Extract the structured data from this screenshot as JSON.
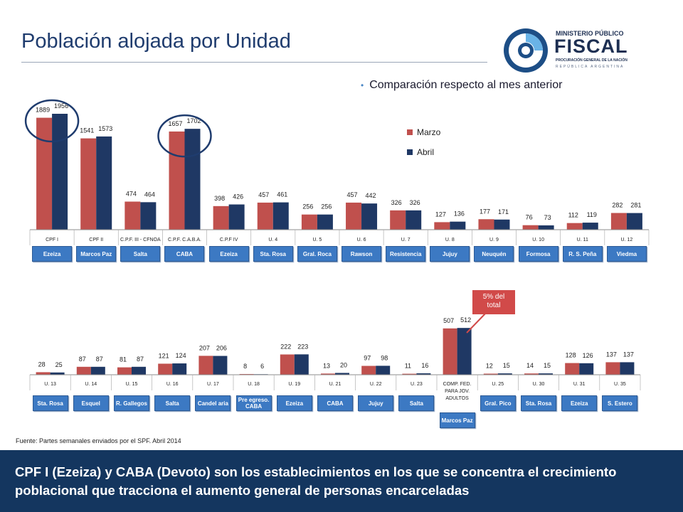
{
  "header": {
    "title": "Población alojada por Unidad",
    "subtitle": "Comparación respecto al mes anterior"
  },
  "logo": {
    "line1": "MINISTERIO PÚBLICO",
    "line2": "FISCAL",
    "line3": "PROCURACIÓN GENERAL DE LA NACIÓN",
    "line4": "REPÚBLICA ARGENTINA"
  },
  "colors": {
    "marzo": "#c0504d",
    "abril": "#1f3864",
    "chip": "#3c79c3",
    "footer": "#14365f"
  },
  "callout": {
    "line1": "5% del",
    "line2": "total"
  },
  "chart_data": [
    {
      "type": "bar",
      "legend": [
        "Marzo",
        "Abril"
      ],
      "legend_position": "right",
      "categories": [
        "CPF I",
        "CPF II",
        "C.P.F. III - CFNOA",
        "C.P.F. C.A.B.A.",
        "C.P.F IV",
        "U. 4",
        "U. 5",
        "U. 6",
        "U. 7",
        "U. 8",
        "U. 9",
        "U. 10",
        "U. 11",
        "U. 12"
      ],
      "locations": [
        "Ezeiza",
        "Marcos Paz",
        "Salta",
        "CABA",
        "Ezeiza",
        "Sta. Rosa",
        "Gral. Roca",
        "Rawson",
        "Resistencia",
        "Jujuy",
        "Neuquén",
        "Formosa",
        "R. S. Peña",
        "Viedma"
      ],
      "series": [
        {
          "name": "Marzo",
          "values": [
            1889,
            1541,
            474,
            1657,
            398,
            457,
            256,
            457,
            326,
            127,
            177,
            76,
            112,
            282
          ]
        },
        {
          "name": "Abril",
          "values": [
            1956,
            1573,
            464,
            1702,
            426,
            461,
            256,
            442,
            326,
            136,
            171,
            73,
            119,
            281
          ]
        }
      ],
      "highlighted": [
        "CPF I",
        "C.P.F. C.A.B.A."
      ],
      "ylim": [
        0,
        2100
      ]
    },
    {
      "type": "bar",
      "categories": [
        "U. 13",
        "U. 14",
        "U. 15",
        "U. 16",
        "U. 17",
        "U. 18",
        "U. 19",
        "U. 21",
        "U. 22",
        "U. 23",
        "COMP. FED. PARA JOV. ADULTOS",
        "U. 25",
        "U. 30",
        "U. 31",
        "U. 35"
      ],
      "locations": [
        "Sta. Rosa",
        "Esquel",
        "R. Gallegos",
        "Salta",
        "Candel aria",
        "Pre egreso. CABA",
        "Ezeiza",
        "CABA",
        "Jujuy",
        "Salta",
        "Marcos Paz",
        "Gral. Pico",
        "Sta. Rosa",
        "Ezeiza",
        "S. Estero"
      ],
      "series": [
        {
          "name": "Marzo",
          "values": [
            28,
            87,
            81,
            121,
            207,
            8,
            222,
            13,
            97,
            11,
            507,
            12,
            14,
            128,
            137
          ]
        },
        {
          "name": "Abril",
          "values": [
            25,
            87,
            87,
            124,
            206,
            6,
            223,
            20,
            98,
            16,
            512,
            15,
            15,
            126,
            137
          ]
        }
      ],
      "ylim": [
        0,
        560
      ]
    }
  ],
  "footer": {
    "source": "Fuente: Partes semanales enviados por el SPF. Abril 2014",
    "message": "CPF I (Ezeiza) y CABA (Devoto) son los establecimientos en los que se concentra el crecimiento poblacional que tracciona el aumento general de personas encarceladas"
  }
}
